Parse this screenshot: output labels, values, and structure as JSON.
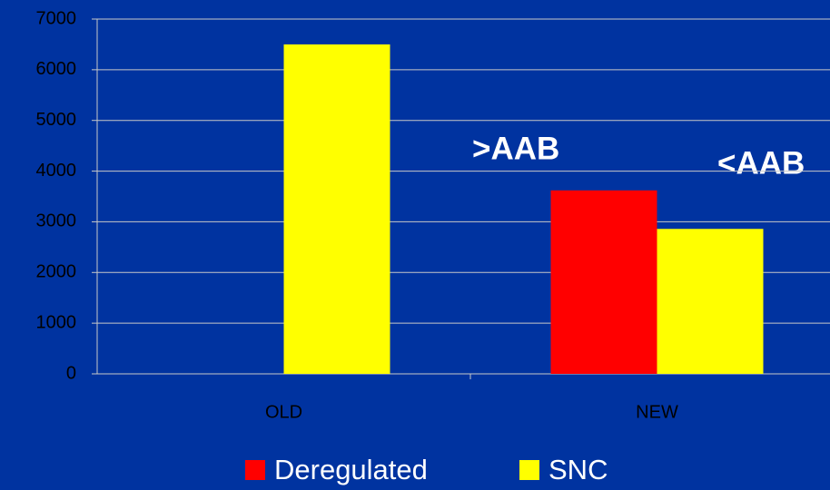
{
  "chart_data": {
    "type": "bar",
    "categories": [
      "OLD",
      "NEW"
    ],
    "series": [
      {
        "name": "Deregulated",
        "color": "#ff0000",
        "values": [
          null,
          3620
        ]
      },
      {
        "name": "SNC",
        "color": "#ffff00",
        "values": [
          6500,
          2860
        ]
      }
    ],
    "ylim": [
      0,
      7000
    ],
    "yticks": [
      0,
      1000,
      2000,
      3000,
      4000,
      5000,
      6000,
      7000
    ],
    "grid": true,
    "legend": "bottom",
    "annotations": [
      ">AAB",
      "<AAB"
    ]
  }
}
